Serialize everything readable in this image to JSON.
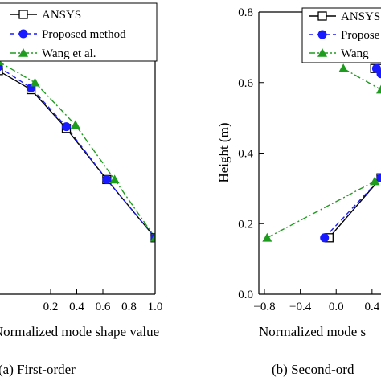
{
  "series_style": [
    {
      "color": "#000000",
      "dash": "",
      "marker": "square"
    },
    {
      "color": "#1a1aff",
      "dash": "6,4",
      "marker": "circle"
    },
    {
      "color": "#1e9c1e",
      "dash": "8,3,2,3",
      "marker": "triangle"
    }
  ],
  "chart_data": [
    {
      "type": "line",
      "caption": "(a)  First-order",
      "xlabel": "Normalized mode shape value",
      "ylabel": "",
      "xlim": [
        -0.2,
        1.0
      ],
      "ylim": [
        0,
        0.8
      ],
      "xticks": [
        "0.2",
        "0.4",
        "0.6",
        "0.8",
        "1.0"
      ],
      "xtick_values": [
        0.2,
        0.4,
        0.6,
        0.8,
        1.0
      ],
      "yticks": [],
      "ytick_values": [],
      "legend_position": "top-right",
      "series": [
        {
          "name": "ANSYS",
          "points": [
            {
              "x": -0.2,
              "y": 0.634
            },
            {
              "x": 0.05,
              "y": 0.58
            },
            {
              "x": 0.32,
              "y": 0.47
            },
            {
              "x": 0.63,
              "y": 0.325
            },
            {
              "x": 1.0,
              "y": 0.16
            }
          ]
        },
        {
          "name": "Proposed method",
          "points": [
            {
              "x": -0.2,
              "y": 0.645
            },
            {
              "x": 0.05,
              "y": 0.585
            },
            {
              "x": 0.32,
              "y": 0.475
            },
            {
              "x": 0.63,
              "y": 0.325
            },
            {
              "x": 1.0,
              "y": 0.16
            }
          ]
        },
        {
          "name": "Wang et al.",
          "points": [
            {
              "x": -0.2,
              "y": 0.66
            },
            {
              "x": 0.08,
              "y": 0.6
            },
            {
              "x": 0.39,
              "y": 0.48
            },
            {
              "x": 0.69,
              "y": 0.325
            },
            {
              "x": 1.0,
              "y": 0.16
            }
          ]
        }
      ]
    },
    {
      "type": "line",
      "caption": "(b)  Second-ord",
      "xlabel": "Normalized mode s",
      "ylabel": "Height (m)",
      "xlim": [
        -0.8,
        0.5
      ],
      "ylim": [
        0,
        0.8
      ],
      "xticks": [
        "−0.8",
        "−0.4",
        "0.0",
        "0.4"
      ],
      "xtick_values": [
        -0.8,
        -0.4,
        0.0,
        0.4
      ],
      "yticks": [
        "0.0",
        "0.2",
        "0.4",
        "0.6",
        "0.8"
      ],
      "ytick_values": [
        0.0,
        0.2,
        0.4,
        0.6,
        0.8
      ],
      "legend_position": "top-right",
      "legend_labels": [
        "ANSYS",
        "Propose",
        "Wang"
      ],
      "series": [
        {
          "name": "ANSYS",
          "points": [
            {
              "x": -0.08,
              "y": 0.16
            },
            {
              "x": 0.5,
              "y": 0.33
            }
          ]
        },
        {
          "name": "Proposed method",
          "points": [
            {
              "x": -0.13,
              "y": 0.16
            },
            {
              "x": 0.5,
              "y": 0.33
            }
          ]
        },
        {
          "name": "Wang et al.",
          "points": [
            {
              "x": -0.77,
              "y": 0.16
            },
            {
              "x": 0.43,
              "y": 0.32
            }
          ]
        }
      ],
      "upper_fragments": [
        {
          "name": "ANSYS",
          "points": [
            {
              "x": 0.43,
              "y": 0.64
            },
            {
              "x": 0.5,
              "y": 0.64
            }
          ]
        },
        {
          "name": "Proposed method",
          "points": [
            {
              "x": 0.45,
              "y": 0.64
            },
            {
              "x": 0.5,
              "y": 0.625
            }
          ]
        },
        {
          "name": "Wang et al.",
          "points": [
            {
              "x": 0.08,
              "y": 0.64
            },
            {
              "x": 0.5,
              "y": 0.58
            }
          ]
        }
      ]
    }
  ]
}
